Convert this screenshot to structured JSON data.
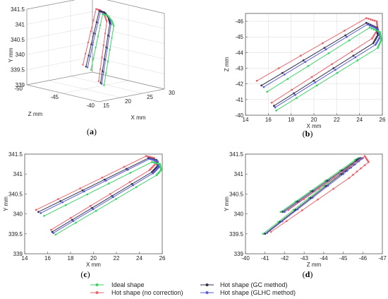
{
  "colors": {
    "ideal": "#3fd16a",
    "nocorr": "#e8646f",
    "gc": "#33334d",
    "glhc": "#5b5bd6"
  },
  "legend": {
    "ideal": "Ideal shape",
    "nocorr": "Hot shape (no correction)",
    "gc": "Hot shape (GC method)",
    "glhc": "Hot shape (GLHC method)"
  },
  "panel_labels": [
    "a",
    "b",
    "c",
    "d"
  ],
  "chart_data": [
    {
      "id": "a",
      "type": "line",
      "projection": "3d",
      "xlabel": "X mm",
      "ylabel": "Y mm",
      "zlabel": "Z mm",
      "xlim": [
        15,
        30
      ],
      "ylim": [
        339,
        341.5
      ],
      "zlim": [
        -50,
        -40
      ],
      "xticks": [
        "15",
        "20",
        "25",
        "30"
      ],
      "yticks": [
        "339",
        "339.5",
        "340",
        "340.5",
        "341",
        "341.5"
      ],
      "zticks": [
        "-50",
        "-45",
        "-40"
      ]
    },
    {
      "id": "b",
      "type": "line",
      "xlabel": "X mm",
      "ylabel": "Z mm",
      "xlim": [
        14,
        26
      ],
      "ylim": [
        -40,
        -46.5
      ],
      "grid": true,
      "xticks": [
        "14",
        "16",
        "18",
        "20",
        "22",
        "24",
        "26"
      ],
      "yticks": [
        "-46",
        "-45",
        "-44",
        "-43",
        "-42",
        "-41",
        "-40"
      ],
      "series": [
        {
          "key": "nocorr",
          "x": [
            15.0,
            24.6,
            25.5,
            25.6,
            25.1,
            16.3
          ],
          "y": [
            -42.2,
            -46.2,
            -46.0,
            -45.5,
            -44.9,
            -40.8
          ]
        },
        {
          "key": "gc",
          "x": [
            15.4,
            24.6,
            25.5,
            25.6,
            25.2,
            16.5
          ],
          "y": [
            -41.9,
            -45.9,
            -45.6,
            -45.1,
            -44.6,
            -40.6
          ]
        },
        {
          "key": "glhc",
          "x": [
            15.6,
            24.7,
            25.6,
            25.8,
            25.4,
            16.6
          ],
          "y": [
            -41.8,
            -45.8,
            -45.5,
            -45.0,
            -44.5,
            -40.5
          ]
        },
        {
          "key": "ideal",
          "x": [
            15.9,
            24.9,
            25.8,
            25.9,
            25.6,
            16.7
          ],
          "y": [
            -41.5,
            -45.6,
            -45.3,
            -44.8,
            -44.3,
            -40.3
          ]
        }
      ]
    },
    {
      "id": "c",
      "type": "line",
      "xlabel": "X mm",
      "ylabel": "Y mm",
      "xlim": [
        14,
        26
      ],
      "ylim": [
        339,
        341.5
      ],
      "xticks": [
        "14",
        "16",
        "18",
        "20",
        "22",
        "24",
        "26"
      ],
      "yticks": [
        "339",
        "339.5",
        "340",
        "340.5",
        "341",
        "341.5"
      ],
      "series": [
        {
          "key": "nocorr",
          "x": [
            15.0,
            24.6,
            25.3,
            25.4,
            24.9,
            16.3
          ],
          "y": [
            340.1,
            341.45,
            341.4,
            341.25,
            341.1,
            339.6
          ]
        },
        {
          "key": "gc",
          "x": [
            15.2,
            24.8,
            25.5,
            25.6,
            25.1,
            16.4
          ],
          "y": [
            340.05,
            341.4,
            341.35,
            341.2,
            341.05,
            339.55
          ]
        },
        {
          "key": "glhc",
          "x": [
            15.4,
            24.9,
            25.6,
            25.7,
            25.2,
            16.5
          ],
          "y": [
            340.02,
            341.38,
            341.32,
            341.17,
            341.02,
            339.52
          ]
        },
        {
          "key": "ideal",
          "x": [
            15.7,
            25.1,
            25.8,
            25.9,
            25.5,
            16.7
          ],
          "y": [
            339.95,
            341.3,
            341.25,
            341.1,
            340.97,
            339.48
          ]
        }
      ]
    },
    {
      "id": "d",
      "type": "line",
      "xlabel": "Z mm",
      "ylabel": "Y mm",
      "xlim": [
        -40,
        -47
      ],
      "ylim": [
        339,
        341.5
      ],
      "xticks": [
        "-40",
        "-41",
        "-42",
        "-43",
        "-44",
        "-45",
        "-46",
        "-47"
      ],
      "yticks": [
        "339",
        "339.5",
        "340",
        "340.5",
        "341",
        "341.5"
      ],
      "series": [
        {
          "key": "ideal",
          "x": [
            -41.8,
            -45.6,
            -45.8,
            -44.8,
            -40.9
          ],
          "y": [
            340.05,
            341.35,
            341.4,
            341.0,
            339.5
          ]
        },
        {
          "key": "gc",
          "x": [
            -41.9,
            -45.7,
            -45.9,
            -44.9,
            -41.0
          ],
          "y": [
            340.05,
            341.35,
            341.4,
            341.0,
            339.5
          ]
        },
        {
          "key": "glhc",
          "x": [
            -42.0,
            -45.8,
            -46.0,
            -45.0,
            -41.1
          ],
          "y": [
            340.05,
            341.35,
            341.4,
            341.0,
            339.52
          ]
        },
        {
          "key": "nocorr",
          "x": [
            -42.2,
            -46.1,
            -46.3,
            -45.3,
            -41.3
          ],
          "y": [
            340.1,
            341.45,
            341.3,
            340.9,
            339.55
          ]
        }
      ]
    }
  ]
}
